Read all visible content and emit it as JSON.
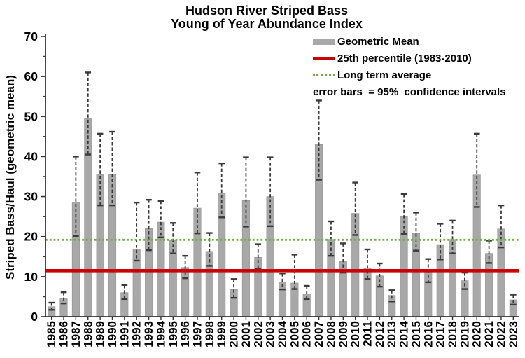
{
  "title": {
    "line1": "Hudson River Striped Bass",
    "line2": "Young of Year Abundance Index"
  },
  "y_axis": {
    "label": "Striped Bass/Haul (geometric mean)",
    "tick_labels": [
      "0",
      "10",
      "20",
      "30",
      "40",
      "50",
      "60",
      "70"
    ]
  },
  "legend": {
    "geometric_mean_label": "Geometric Mean",
    "percentile_label": "25th percentile (1983-2010)",
    "long_term_label": "Long term average",
    "error_note": "error bars  = 95%  confidence intervals"
  },
  "colors": {
    "bar": "#a8a8a8",
    "bar_edge": "#979797",
    "error_bar": "#3a3a3a",
    "percentile_line": "#cc0000",
    "long_term_line": "#70ad47",
    "axis": "#333333"
  },
  "chart_data": {
    "type": "bar",
    "title": "Hudson River Striped Bass - Young of Year Abundance Index",
    "xlabel": "",
    "ylabel": "Striped Bass/Haul (geometric mean)",
    "ylim": [
      0,
      70
    ],
    "y_major_step": 10,
    "y_minor_step": 5,
    "grid": false,
    "legend_position": "top-right",
    "error_bars_note": "error bars = 95% confidence intervals",
    "categories": [
      1985,
      1986,
      1987,
      1988,
      1989,
      1990,
      1991,
      1992,
      1993,
      1994,
      1995,
      1996,
      1997,
      1998,
      1999,
      2000,
      2001,
      2002,
      2003,
      2004,
      2005,
      2006,
      2007,
      2008,
      2009,
      2010,
      2011,
      2012,
      2013,
      2014,
      2015,
      2016,
      2017,
      2018,
      2019,
      2020,
      2021,
      2022,
      2023
    ],
    "series": [
      {
        "name": "Geometric Mean",
        "values": [
          2.5,
          4.6,
          28.6,
          49.5,
          35.5,
          35.5,
          6.0,
          16.9,
          22.0,
          23.6,
          19.0,
          12.3,
          27.1,
          16.3,
          30.8,
          6.8,
          29.0,
          14.8,
          30.0,
          8.7,
          8.4,
          5.7,
          43.0,
          19.3,
          13.8,
          25.8,
          12.2,
          10.2,
          5.3,
          25.0,
          20.8,
          11.6,
          18.0,
          19.3,
          9.0,
          35.4,
          15.8,
          21.9,
          4.2
        ]
      }
    ],
    "error_low": [
      1.7,
      3.3,
      20.1,
      40.5,
      27.8,
      27.8,
      4.4,
      14.0,
      16.6,
      19.8,
      15.8,
      9.6,
      20.8,
      12.7,
      24.8,
      4.7,
      22.5,
      12.0,
      22.6,
      6.8,
      6.9,
      4.4,
      34.2,
      15.2,
      11.0,
      20.4,
      9.4,
      7.5,
      3.8,
      20.7,
      16.5,
      8.6,
      14.3,
      15.8,
      6.9,
      27.4,
      13.4,
      17.3,
      3.0
    ],
    "error_high": [
      3.5,
      6.1,
      40.0,
      61.0,
      45.7,
      46.2,
      7.9,
      28.5,
      29.2,
      28.9,
      23.4,
      15.2,
      36.0,
      20.9,
      38.3,
      9.4,
      39.8,
      18.1,
      39.8,
      10.8,
      15.5,
      7.7,
      54.0,
      23.8,
      18.3,
      33.5,
      16.8,
      13.3,
      6.6,
      30.6,
      26.0,
      14.4,
      23.2,
      24.0,
      11.0,
      45.7,
      19.0,
      27.8,
      5.5
    ],
    "reference_lines": [
      {
        "name": "25th percentile (1983-2010)",
        "value": 11.5,
        "style": "solid",
        "color": "#cc0000"
      },
      {
        "name": "Long term average",
        "value": 19.2,
        "style": "dotted",
        "color": "#70ad47"
      }
    ]
  }
}
